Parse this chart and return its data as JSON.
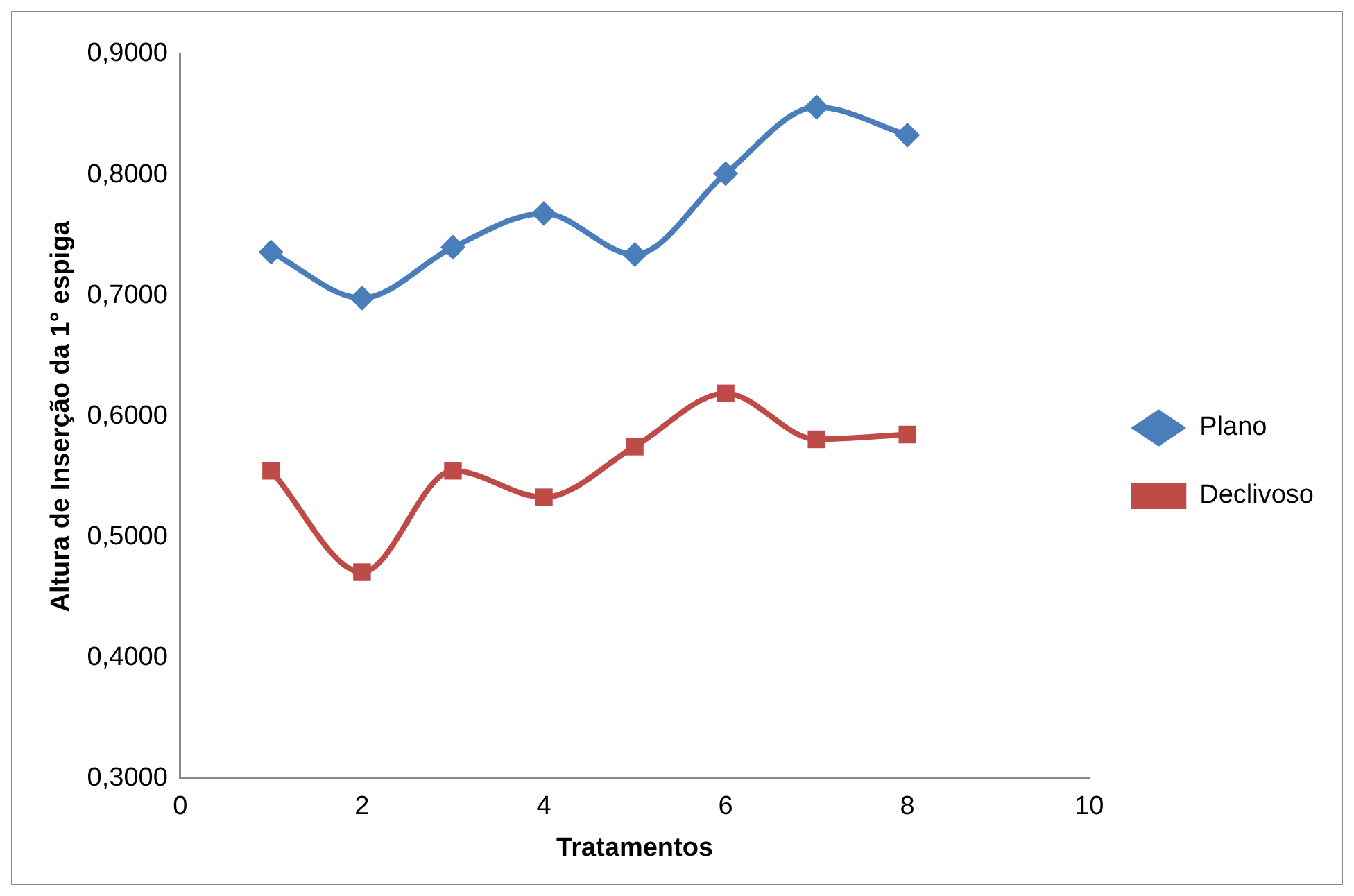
{
  "chart_data": {
    "type": "line",
    "xlabel": "Tratamentos",
    "ylabel": "Altura de Inserção da 1° espiga",
    "x": [
      1,
      2,
      3,
      4,
      5,
      6,
      7,
      8
    ],
    "series": [
      {
        "name": "Plano",
        "color": "#4a7ebb",
        "marker": "diamond",
        "values": [
          0.736,
          0.698,
          0.74,
          0.768,
          0.734,
          0.801,
          0.856,
          0.833
        ]
      },
      {
        "name": "Declivoso",
        "color": "#be4b48",
        "marker": "square",
        "values": [
          0.555,
          0.471,
          0.555,
          0.533,
          0.575,
          0.619,
          0.581,
          0.585
        ]
      }
    ],
    "xlim": [
      0,
      10
    ],
    "xticks": [
      0,
      2,
      4,
      6,
      8,
      10
    ],
    "ylim": [
      0.3,
      0.9
    ],
    "yticks": [
      {
        "value": 0.3,
        "label": "0,3000"
      },
      {
        "value": 0.4,
        "label": "0,4000"
      },
      {
        "value": 0.5,
        "label": "0,5000"
      },
      {
        "value": 0.6,
        "label": "0,6000"
      },
      {
        "value": 0.7,
        "label": "0,7000"
      },
      {
        "value": 0.8,
        "label": "0,8000"
      },
      {
        "value": 0.9,
        "label": "0,9000"
      }
    ],
    "grid": false,
    "legend": "right",
    "line_style": "solid"
  }
}
